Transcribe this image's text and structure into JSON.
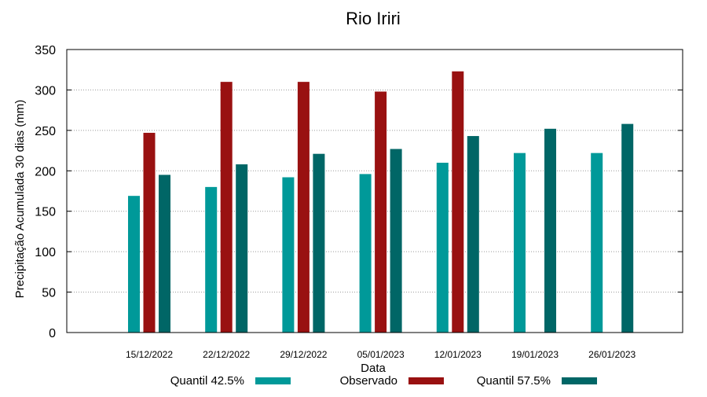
{
  "chart_data": {
    "type": "bar",
    "title": "Rio Iriri",
    "xlabel": "Data",
    "ylabel": "Precipitação Acumulada 30 dias (mm)",
    "ylim": [
      0,
      350
    ],
    "yticks": [
      0,
      50,
      100,
      150,
      200,
      250,
      300,
      350
    ],
    "grid": true,
    "legend_placement": "bottom",
    "categories": [
      "15/12/2022",
      "22/12/2022",
      "29/12/2022",
      "05/01/2023",
      "12/01/2023",
      "19/01/2023",
      "26/01/2023"
    ],
    "series": [
      {
        "name": "Quantil 42.5%",
        "color": "#009999",
        "values": [
          169,
          180,
          192,
          196,
          210,
          222,
          222
        ]
      },
      {
        "name": "Observado",
        "color": "#991111",
        "values": [
          247,
          310,
          310,
          298,
          323,
          null,
          null
        ]
      },
      {
        "name": "Quantil 57.5%",
        "color": "#006666",
        "values": [
          195,
          208,
          221,
          227,
          243,
          252,
          258
        ]
      }
    ]
  }
}
